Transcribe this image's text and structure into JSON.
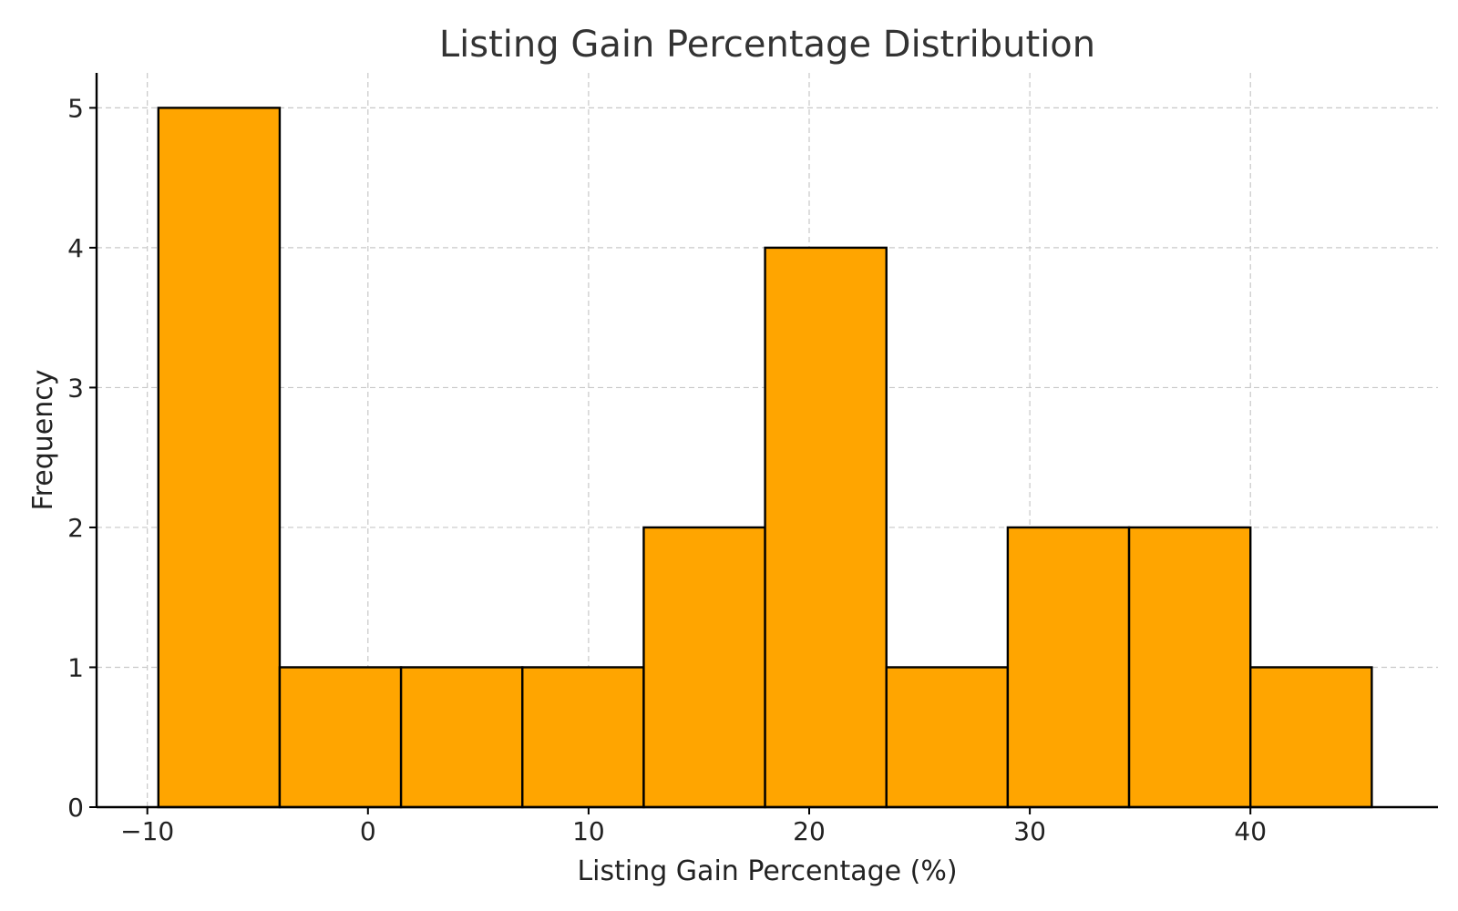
{
  "chart_data": {
    "type": "bar",
    "title": "Listing Gain Percentage Distribution",
    "xlabel": "Listing Gain Percentage (%)",
    "ylabel": "Frequency",
    "xlim": [
      -12.3,
      48.5
    ],
    "ylim": [
      0,
      5.25
    ],
    "xticks": [
      -10,
      0,
      10,
      20,
      30,
      40
    ],
    "xtick_labels": [
      "−10",
      "0",
      "10",
      "20",
      "30",
      "40"
    ],
    "yticks": [
      0,
      1,
      2,
      3,
      4,
      5
    ],
    "ytick_labels": [
      "0",
      "1",
      "2",
      "3",
      "4",
      "5"
    ],
    "bin_edges": [
      -9.5,
      -4.0,
      1.5,
      7.0,
      12.5,
      18.0,
      23.5,
      29.0,
      34.5,
      40.0,
      45.5
    ],
    "values": [
      5,
      1,
      1,
      1,
      2,
      4,
      1,
      2,
      2,
      1
    ],
    "bar_color": "#FFA500",
    "edge_color": "#000000",
    "grid": true,
    "legend": false
  }
}
